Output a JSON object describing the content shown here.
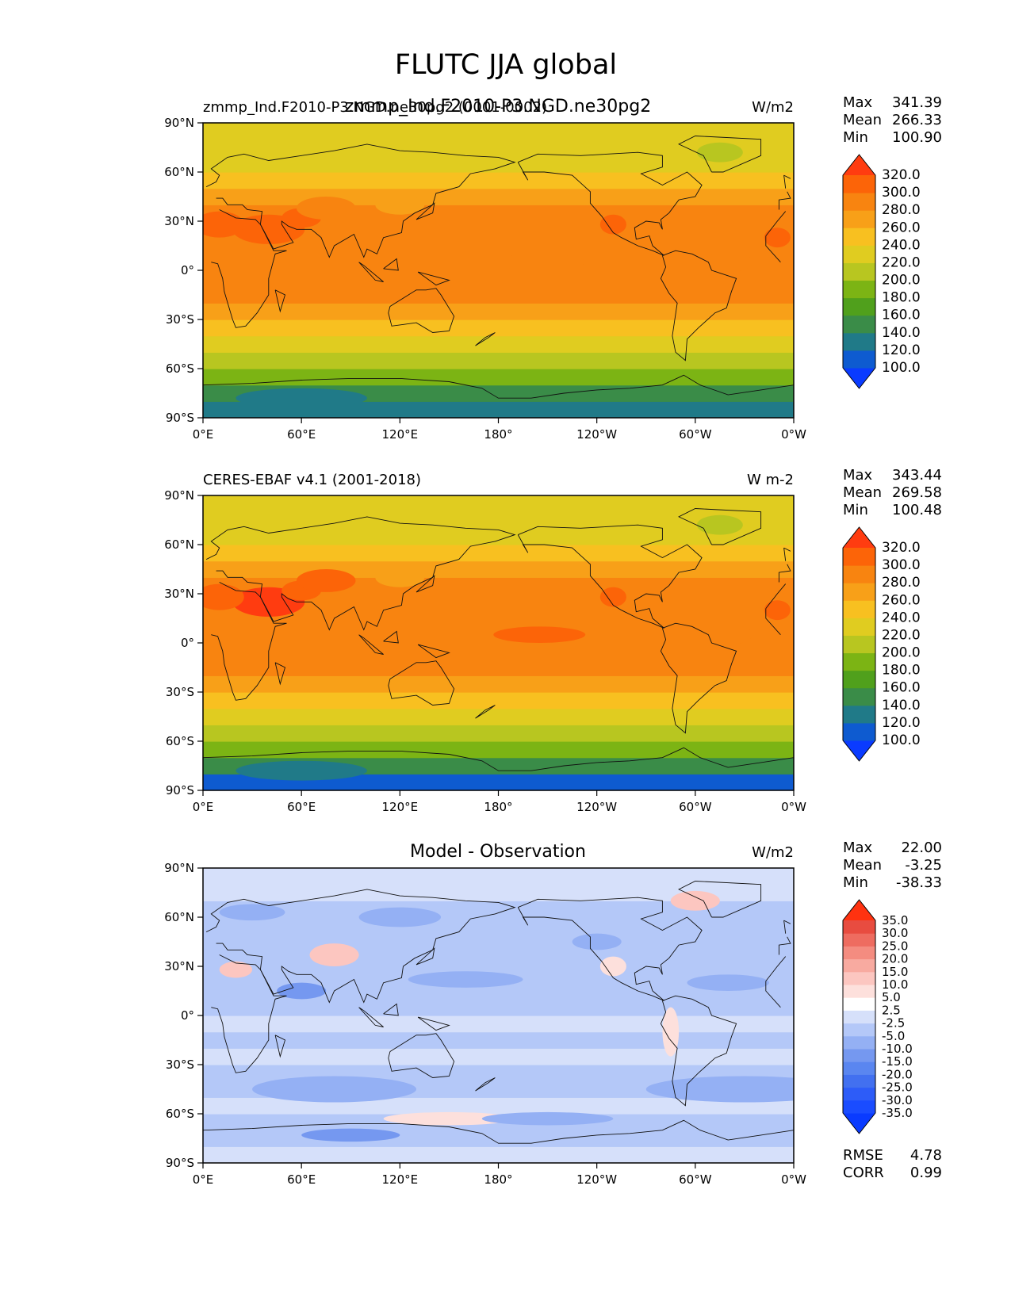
{
  "suptitle": "FLUTC JJA global",
  "chart_data": [
    {
      "type": "heatmap",
      "panel": "model",
      "title": "zmmp_Ind.F2010-P3.NGD.ne30pg2",
      "subtitle_left": "zmmp_Ind.F2010-P3.NGD.ne30pg2 (0001-0002)",
      "units": "W/m2",
      "stats": {
        "max_label": "Max",
        "max": "341.39",
        "mean_label": "Mean",
        "mean": "266.33",
        "min_label": "Min",
        "min": "100.90"
      },
      "x_ticks": [
        "0°E",
        "60°E",
        "120°E",
        "180°",
        "120°W",
        "60°W",
        "0°W"
      ],
      "y_ticks": [
        "90°N",
        "60°N",
        "30°N",
        "0°",
        "30°S",
        "60°S",
        "90°S"
      ],
      "xlim": [
        0,
        360
      ],
      "ylim": [
        -90,
        90
      ],
      "colorbar": {
        "levels": [
          100,
          120,
          140,
          160,
          180,
          200,
          220,
          240,
          260,
          280,
          300,
          320
        ],
        "labels": [
          "100.0",
          "120.0",
          "140.0",
          "160.0",
          "180.0",
          "200.0",
          "220.0",
          "240.0",
          "260.0",
          "280.0",
          "300.0",
          "320.0"
        ],
        "colors": [
          "#0a3bff",
          "#0e5bd0",
          "#207a88",
          "#3a8c48",
          "#50a01c",
          "#7cb414",
          "#b8c620",
          "#e0cc20",
          "#f8c020",
          "#f8a018",
          "#f88410",
          "#fc6408",
          "#ff3c10"
        ]
      },
      "zonal_profile": {
        "lat": [
          -85,
          -75,
          -65,
          -55,
          -45,
          -35,
          -25,
          -15,
          -5,
          5,
          15,
          25,
          35,
          45,
          55,
          65,
          75,
          85
        ],
        "value": [
          120,
          145,
          185,
          215,
          235,
          255,
          270,
          282,
          285,
          280,
          285,
          288,
          282,
          262,
          245,
          235,
          230,
          225
        ]
      }
    },
    {
      "type": "heatmap",
      "panel": "observation",
      "title": "",
      "subtitle_left": "CERES-EBAF v4.1 (2001-2018)",
      "units": "W m-2",
      "stats": {
        "max_label": "Max",
        "max": "343.44",
        "mean_label": "Mean",
        "mean": "269.58",
        "min_label": "Min",
        "min": "100.48"
      },
      "x_ticks": [
        "0°E",
        "60°E",
        "120°E",
        "180°",
        "120°W",
        "60°W",
        "0°W"
      ],
      "y_ticks": [
        "90°N",
        "60°N",
        "30°N",
        "0°",
        "30°S",
        "60°S",
        "90°S"
      ],
      "xlim": [
        0,
        360
      ],
      "ylim": [
        -90,
        90
      ],
      "colorbar": {
        "levels": [
          100,
          120,
          140,
          160,
          180,
          200,
          220,
          240,
          260,
          280,
          300,
          320
        ],
        "labels": [
          "100.0",
          "120.0",
          "140.0",
          "160.0",
          "180.0",
          "200.0",
          "220.0",
          "240.0",
          "260.0",
          "280.0",
          "300.0",
          "320.0"
        ],
        "colors": [
          "#0a3bff",
          "#0e5bd0",
          "#207a88",
          "#3a8c48",
          "#50a01c",
          "#7cb414",
          "#b8c620",
          "#e0cc20",
          "#f8c020",
          "#f8a018",
          "#f88410",
          "#fc6408",
          "#ff3c10"
        ]
      },
      "zonal_profile": {
        "lat": [
          -85,
          -75,
          -65,
          -55,
          -45,
          -35,
          -25,
          -15,
          -5,
          5,
          15,
          25,
          35,
          45,
          55,
          65,
          75,
          85
        ],
        "value": [
          118,
          148,
          188,
          218,
          238,
          258,
          272,
          284,
          287,
          283,
          288,
          292,
          286,
          266,
          248,
          238,
          232,
          226
        ]
      }
    },
    {
      "type": "heatmap",
      "panel": "difference",
      "title": "Model - Observation",
      "subtitle_left": "",
      "units": "W/m2",
      "stats": {
        "max_label": "Max",
        "max": "22.00",
        "mean_label": "Mean",
        "mean": "-3.25",
        "min_label": "Min",
        "min": "-38.33"
      },
      "extra_stats": {
        "rmse_label": "RMSE",
        "rmse": "4.78",
        "corr_label": "CORR",
        "corr": "0.99"
      },
      "x_ticks": [
        "0°E",
        "60°E",
        "120°E",
        "180°",
        "120°W",
        "60°W",
        "0°W"
      ],
      "y_ticks": [
        "90°N",
        "60°N",
        "30°N",
        "0°",
        "30°S",
        "60°S",
        "90°S"
      ],
      "xlim": [
        0,
        360
      ],
      "ylim": [
        -90,
        90
      ],
      "colorbar": {
        "levels": [
          -35,
          -30,
          -25,
          -20,
          -15,
          -10,
          -5,
          -2.5,
          2.5,
          5,
          10,
          15,
          20,
          25,
          30,
          35
        ],
        "labels": [
          "-35.0",
          "-30.0",
          "-25.0",
          "-20.0",
          "-15.0",
          "-10.0",
          "-5.0",
          "-2.5",
          "2.5",
          "5.0",
          "10.0",
          "15.0",
          "20.0",
          "25.0",
          "30.0",
          "35.0"
        ],
        "colors": [
          "#0a3bff",
          "#1a4cff",
          "#2d5cf8",
          "#4270f0",
          "#5a86f0",
          "#7598f0",
          "#94b0f4",
          "#b4c8f8",
          "#d6e0fa",
          "#ffffff",
          "#fde0dc",
          "#fcc6c0",
          "#f8aaa0",
          "#f48c80",
          "#ee6c60",
          "#e84c40",
          "#ff3210"
        ]
      },
      "zonal_profile": {
        "lat": [
          -85,
          -75,
          -65,
          -55,
          -45,
          -35,
          -25,
          -15,
          -5,
          5,
          15,
          25,
          35,
          45,
          55,
          65,
          75,
          85
        ],
        "value": [
          1,
          -4,
          -3,
          -1,
          -3,
          -4,
          -2,
          -3,
          -2,
          -4,
          -3,
          -4,
          -3,
          -3,
          -4,
          -3,
          -2,
          -1
        ]
      }
    }
  ]
}
